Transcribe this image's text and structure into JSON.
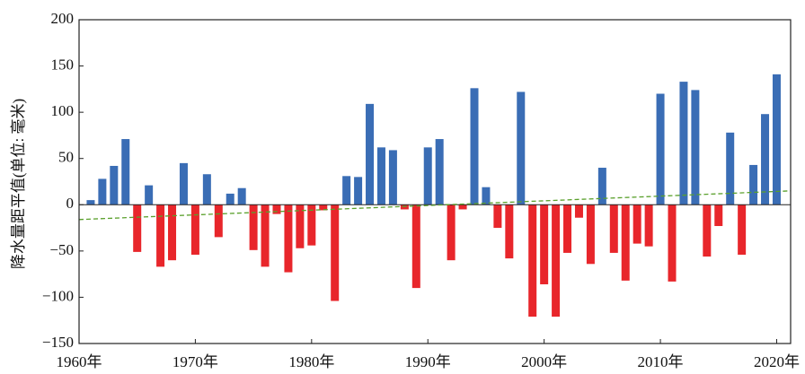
{
  "chart_data": {
    "type": "bar",
    "y_label": "降水量距平值(单位: 毫米)",
    "x": [
      1961,
      1962,
      1963,
      1964,
      1965,
      1966,
      1967,
      1968,
      1969,
      1970,
      1971,
      1972,
      1973,
      1974,
      1975,
      1976,
      1977,
      1978,
      1979,
      1980,
      1981,
      1982,
      1983,
      1984,
      1985,
      1986,
      1987,
      1988,
      1989,
      1990,
      1991,
      1992,
      1993,
      1994,
      1995,
      1996,
      1997,
      1998,
      1999,
      2000,
      2001,
      2002,
      2003,
      2004,
      2005,
      2006,
      2007,
      2008,
      2009,
      2010,
      2011,
      2012,
      2013,
      2014,
      2015,
      2016,
      2017,
      2018,
      2019,
      2020
    ],
    "values": [
      5,
      28,
      42,
      71,
      -51,
      21,
      -67,
      -60,
      45,
      -54,
      33,
      -35,
      12,
      18,
      -49,
      -67,
      -10,
      -73,
      -47,
      -44,
      -6,
      -104,
      31,
      30,
      109,
      62,
      59,
      -5,
      -90,
      62,
      71,
      -60,
      -5,
      126,
      19,
      -25,
      -58,
      122,
      -121,
      -86,
      -121,
      -52,
      -14,
      -64,
      40,
      -52,
      -82,
      -42,
      -45,
      120,
      -83,
      133,
      124,
      -56,
      -23,
      78,
      -54,
      43,
      98,
      141
    ],
    "positive_color": "#3a6db5",
    "negative_color": "#e8262b",
    "trend": {
      "x": [
        1960,
        2021.2
      ],
      "values": [
        -16,
        15
      ],
      "color": "#5aa02c"
    },
    "xlim": [
      1960,
      2021.2
    ],
    "ylim": [
      -150,
      200
    ],
    "xticks": [
      {
        "value": 1960,
        "label": "1960年"
      },
      {
        "value": 1970,
        "label": "1970年"
      },
      {
        "value": 1980,
        "label": "1980年"
      },
      {
        "value": 1990,
        "label": "1990年"
      },
      {
        "value": 2000,
        "label": "2000年"
      },
      {
        "value": 2010,
        "label": "2010年"
      },
      {
        "value": 2020,
        "label": "2020年"
      }
    ],
    "yticks": [
      {
        "value": -150,
        "label": "−150"
      },
      {
        "value": -100,
        "label": "−100"
      },
      {
        "value": -50,
        "label": "−50"
      },
      0,
      50,
      100,
      150,
      200
    ]
  }
}
